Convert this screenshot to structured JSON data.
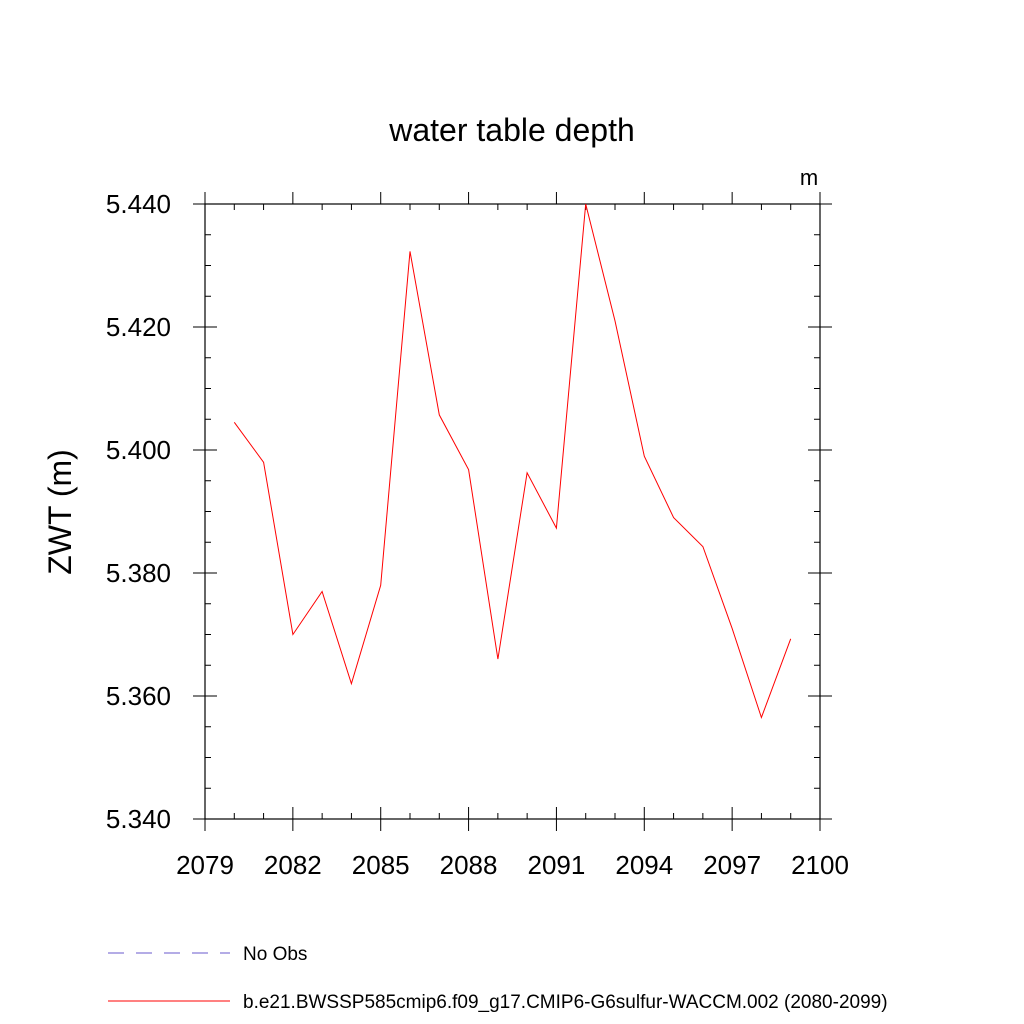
{
  "chart_data": {
    "type": "line",
    "title": "water table depth",
    "units": "m",
    "ylabel": "ZWT  (m)",
    "xlabel": "",
    "xlim": [
      2079,
      2100
    ],
    "ylim": [
      5.34,
      5.44
    ],
    "x_ticks": [
      2079,
      2082,
      2085,
      2088,
      2091,
      2094,
      2097,
      2100
    ],
    "y_ticks": [
      "5.340",
      "5.360",
      "5.380",
      "5.400",
      "5.420",
      "5.440"
    ],
    "y_tick_values": [
      5.34,
      5.36,
      5.38,
      5.4,
      5.42,
      5.44
    ],
    "grid": false,
    "x": [
      2080,
      2081,
      2082,
      2083,
      2084,
      2085,
      2086,
      2087,
      2088,
      2089,
      2090,
      2091,
      2092,
      2093,
      2094,
      2095,
      2096,
      2097,
      2098,
      2099
    ],
    "series": [
      {
        "name": "b.e21.BWSSP585cmip6.f09_g17.CMIP6-G6sulfur-WACCM.002 (2080-2099)",
        "color": "#ff0000",
        "style": "solid",
        "values": [
          5.4045,
          5.398,
          5.37,
          5.377,
          5.362,
          5.378,
          5.4323,
          5.4057,
          5.3968,
          5.366,
          5.3963,
          5.3873,
          5.44,
          5.421,
          5.399,
          5.389,
          5.3843,
          5.371,
          5.3565,
          5.3693
        ]
      }
    ],
    "legend": {
      "placement": "bottom",
      "entries": [
        {
          "label": "No Obs",
          "color": "#6a5acd",
          "style": "dashed"
        },
        {
          "label": "b.e21.BWSSP585cmip6.f09_g17.CMIP6-G6sulfur-WACCM.002 (2080-2099)",
          "color": "#ff0000",
          "style": "solid"
        }
      ]
    }
  }
}
